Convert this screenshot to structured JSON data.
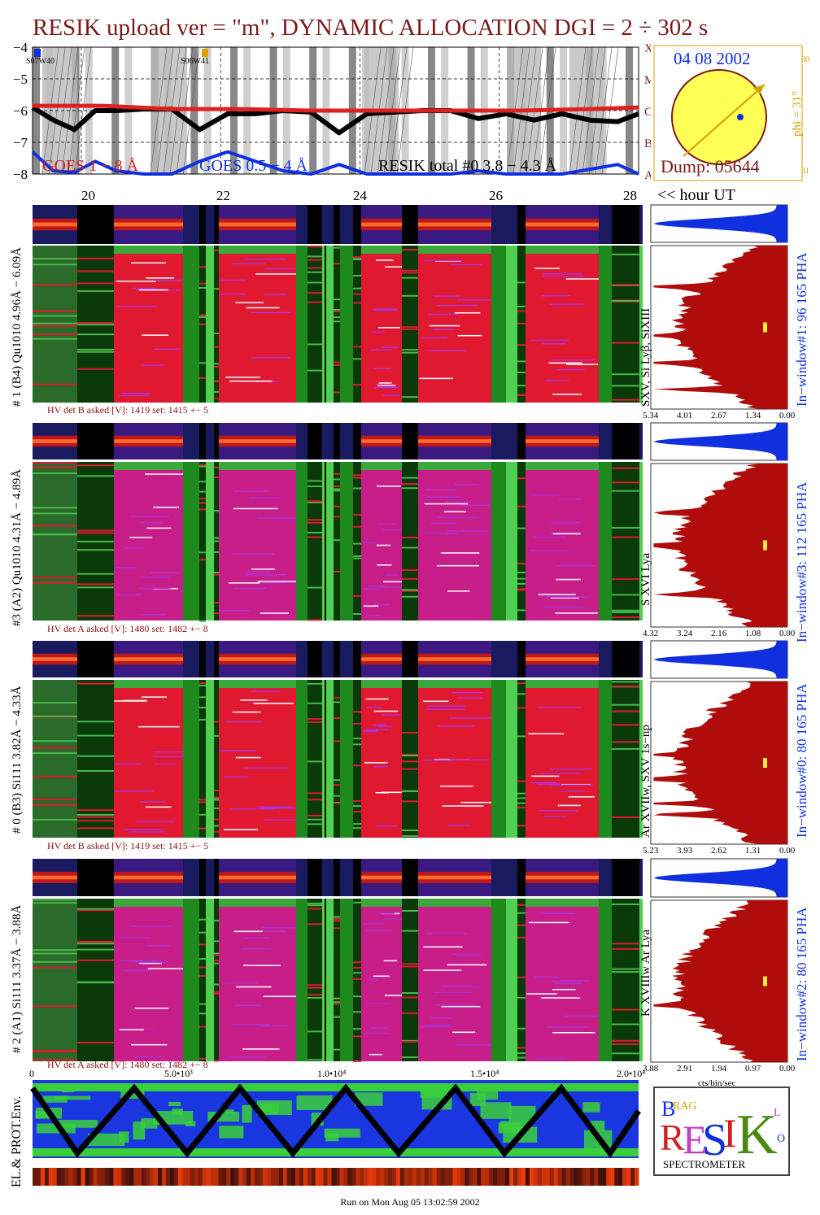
{
  "title": "RESIK upload ver = \"m\", DYNAMIC ALLOCATION  DGI =   2 ÷ 302 s",
  "goes": {
    "y_ticks": [
      "−4",
      "−5",
      "−6",
      "−7",
      "−8"
    ],
    "class_labels": [
      "X",
      "M",
      "C",
      "B",
      "A"
    ],
    "markers": [
      "S07W40",
      "S06W41"
    ],
    "legend": [
      "GOES 1 − 8 Å",
      "GOES 0.5 − 4 Å",
      "RESIK total #0  3.8 − 4.3 Å"
    ],
    "hour_ticks": [
      "20",
      "22",
      "24",
      "26",
      "28"
    ],
    "hour_label": "<< hour UT"
  },
  "sun": {
    "date": "04 08 2002",
    "phi": "phi = 31°",
    "phi_top": "30",
    "phi_bottom": "31",
    "dump": "Dump: 05644",
    "colors": {
      "disk": "#ffff55",
      "outline": "#7a1a1a",
      "arrow": "#d4a000",
      "dot": "#1030e0"
    }
  },
  "panels": [
    {
      "label": "# 1 (B4) Qu1010 4.96Å − 6.09Å",
      "line": "SXV, Si Lyβ, SiXIII",
      "window": "In−window#1:   96 165  PHA",
      "hv": "HV det B asked [V]:  1419  set:  1415  +−     5",
      "ticks": [
        "5.34",
        "4.01",
        "2.67",
        "1.34",
        "0.00"
      ]
    },
    {
      "label": "#3 (A2) Qu1010  4.31Å − 4.89Å",
      "line": "S XVI Lya",
      "window": "In−window#3:   112 165  PHA",
      "hv": "HV det A asked [V]:  1480  set:  1482  +−     8",
      "ticks": [
        "4.32",
        "3.24",
        "2.16",
        "1.08",
        "0.00"
      ]
    },
    {
      "label": "# 0 (B3) Si111  3.82Å − 4.33Å",
      "line": "Ar XVIIw,  SXV 1s−np",
      "window": "In−window#0:   80 165  PHA",
      "hv": "HV det B asked [V]:  1419  set:  1415  +−     5",
      "ticks": [
        "5.23",
        "3.93",
        "2.62",
        "1.31",
        "0.00"
      ]
    },
    {
      "label": "# 2 (A1) Si111  3.37Å − 3.88Å",
      "line": "K XVIIIw   Ar Lya",
      "window": "In−window#2:   80 165  PHA",
      "hv": "HV det A asked [V]:  1480  set:  1482  +−     8",
      "ticks": [
        "3.88",
        "2.91",
        "1.94",
        "0.97",
        "0.00"
      ]
    }
  ],
  "bottom": {
    "x_ticks": [
      "0",
      "5.0•10³",
      "1.0•10⁴",
      "1.5•10⁴",
      "2.0•10⁴"
    ],
    "y_label": "EL.& PROT.Env.",
    "cts_label": "cts/bin/sec"
  },
  "logo": {
    "letters": "BRAGG RESIK SOLAR",
    "spectrometer": "SPECTROMETER"
  },
  "footer": "Run on Mon Aug 05 13:02:59 2002",
  "chart_data": {
    "type": "line",
    "title": "RESIK upload ver = \"m\", DYNAMIC ALLOCATION  DGI =   2 ÷ 302 s",
    "x_axis": "hour UT",
    "xlim": [
      19.3,
      28.0
    ],
    "ylim": [
      -8,
      -4
    ],
    "series": [
      {
        "name": "GOES 1 − 8 Å",
        "color": "#000000",
        "x": [
          19.3,
          19.6,
          19.9,
          20.2,
          20.5,
          20.9,
          21.3,
          21.7,
          22.1,
          22.5,
          22.9,
          23.3,
          23.7,
          24.1,
          24.5,
          24.9,
          25.3,
          25.7,
          26.1,
          26.5,
          26.9,
          27.3,
          27.7,
          28.0
        ],
        "y": [
          -5.9,
          -6.3,
          -6.6,
          -6.0,
          -6.0,
          -5.95,
          -5.95,
          -6.6,
          -6.1,
          -6.1,
          -6.0,
          -6.05,
          -6.7,
          -6.1,
          -6.05,
          -6.0,
          -6.0,
          -6.25,
          -6.1,
          -6.3,
          -6.1,
          -6.3,
          -6.35,
          -6.1
        ]
      },
      {
        "name": "GOES 0.5 − 4 Å",
        "color": "#1030e0",
        "x": [
          19.3,
          19.6,
          19.9,
          20.2,
          20.5,
          20.9,
          21.3,
          21.7,
          22.1,
          22.5,
          22.9,
          23.3,
          23.7,
          24.1,
          24.5,
          24.9,
          25.3,
          25.7,
          26.1,
          26.5,
          26.9,
          27.3,
          27.7,
          28.0
        ],
        "y": [
          -7.3,
          -7.9,
          -7.95,
          -7.6,
          -7.9,
          -8,
          -8,
          -7.6,
          -7.3,
          -7.6,
          -7.9,
          -8,
          -7.7,
          -8,
          -8,
          -8,
          -8,
          -7.9,
          -8,
          -8,
          -8,
          -7.85,
          -7.7,
          -8
        ]
      },
      {
        "name": "RESIK total #0  3.8 − 4.3 Å",
        "color": "#e02020",
        "x": [
          19.3,
          20.3,
          21.3,
          22.3,
          23.3,
          24.3,
          25.3,
          26.3,
          27.3,
          28.0
        ],
        "y": [
          -5.85,
          -5.85,
          -5.95,
          -5.95,
          -6.0,
          -6.0,
          -6.0,
          -6.0,
          -5.95,
          -5.9
        ]
      }
    ]
  }
}
